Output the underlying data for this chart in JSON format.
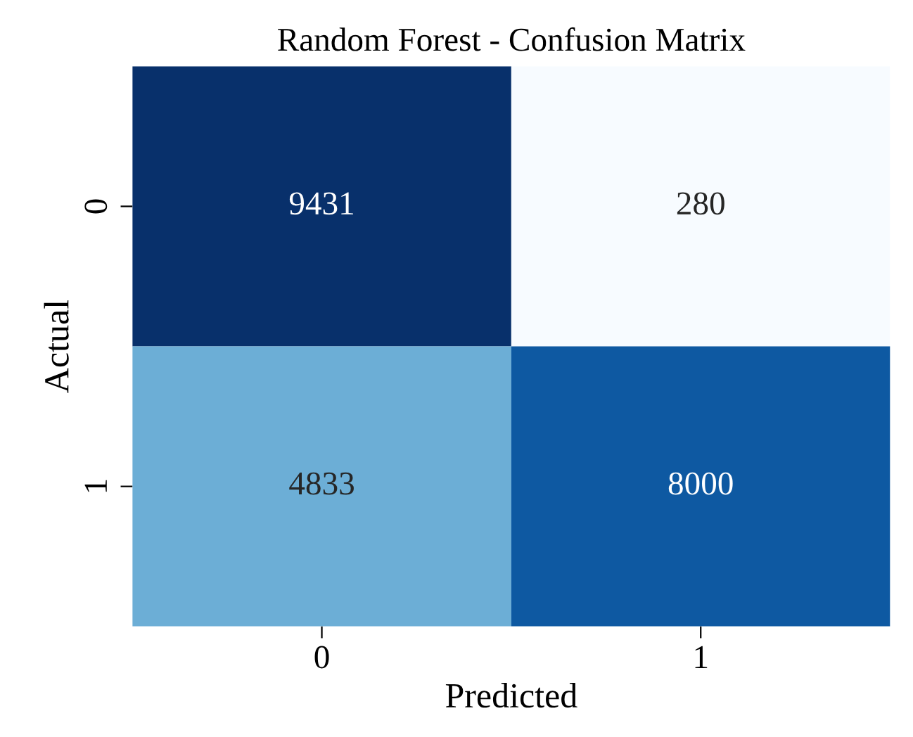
{
  "chart_data": {
    "type": "heatmap",
    "title": "Random Forest - Confusion Matrix",
    "xlabel": "Predicted",
    "ylabel": "Actual",
    "categories": [
      "0",
      "1"
    ],
    "y_categories": [
      "0",
      "1"
    ],
    "cells": [
      [
        9431,
        280
      ],
      [
        4833,
        8000
      ]
    ],
    "data_labels": true
  }
}
